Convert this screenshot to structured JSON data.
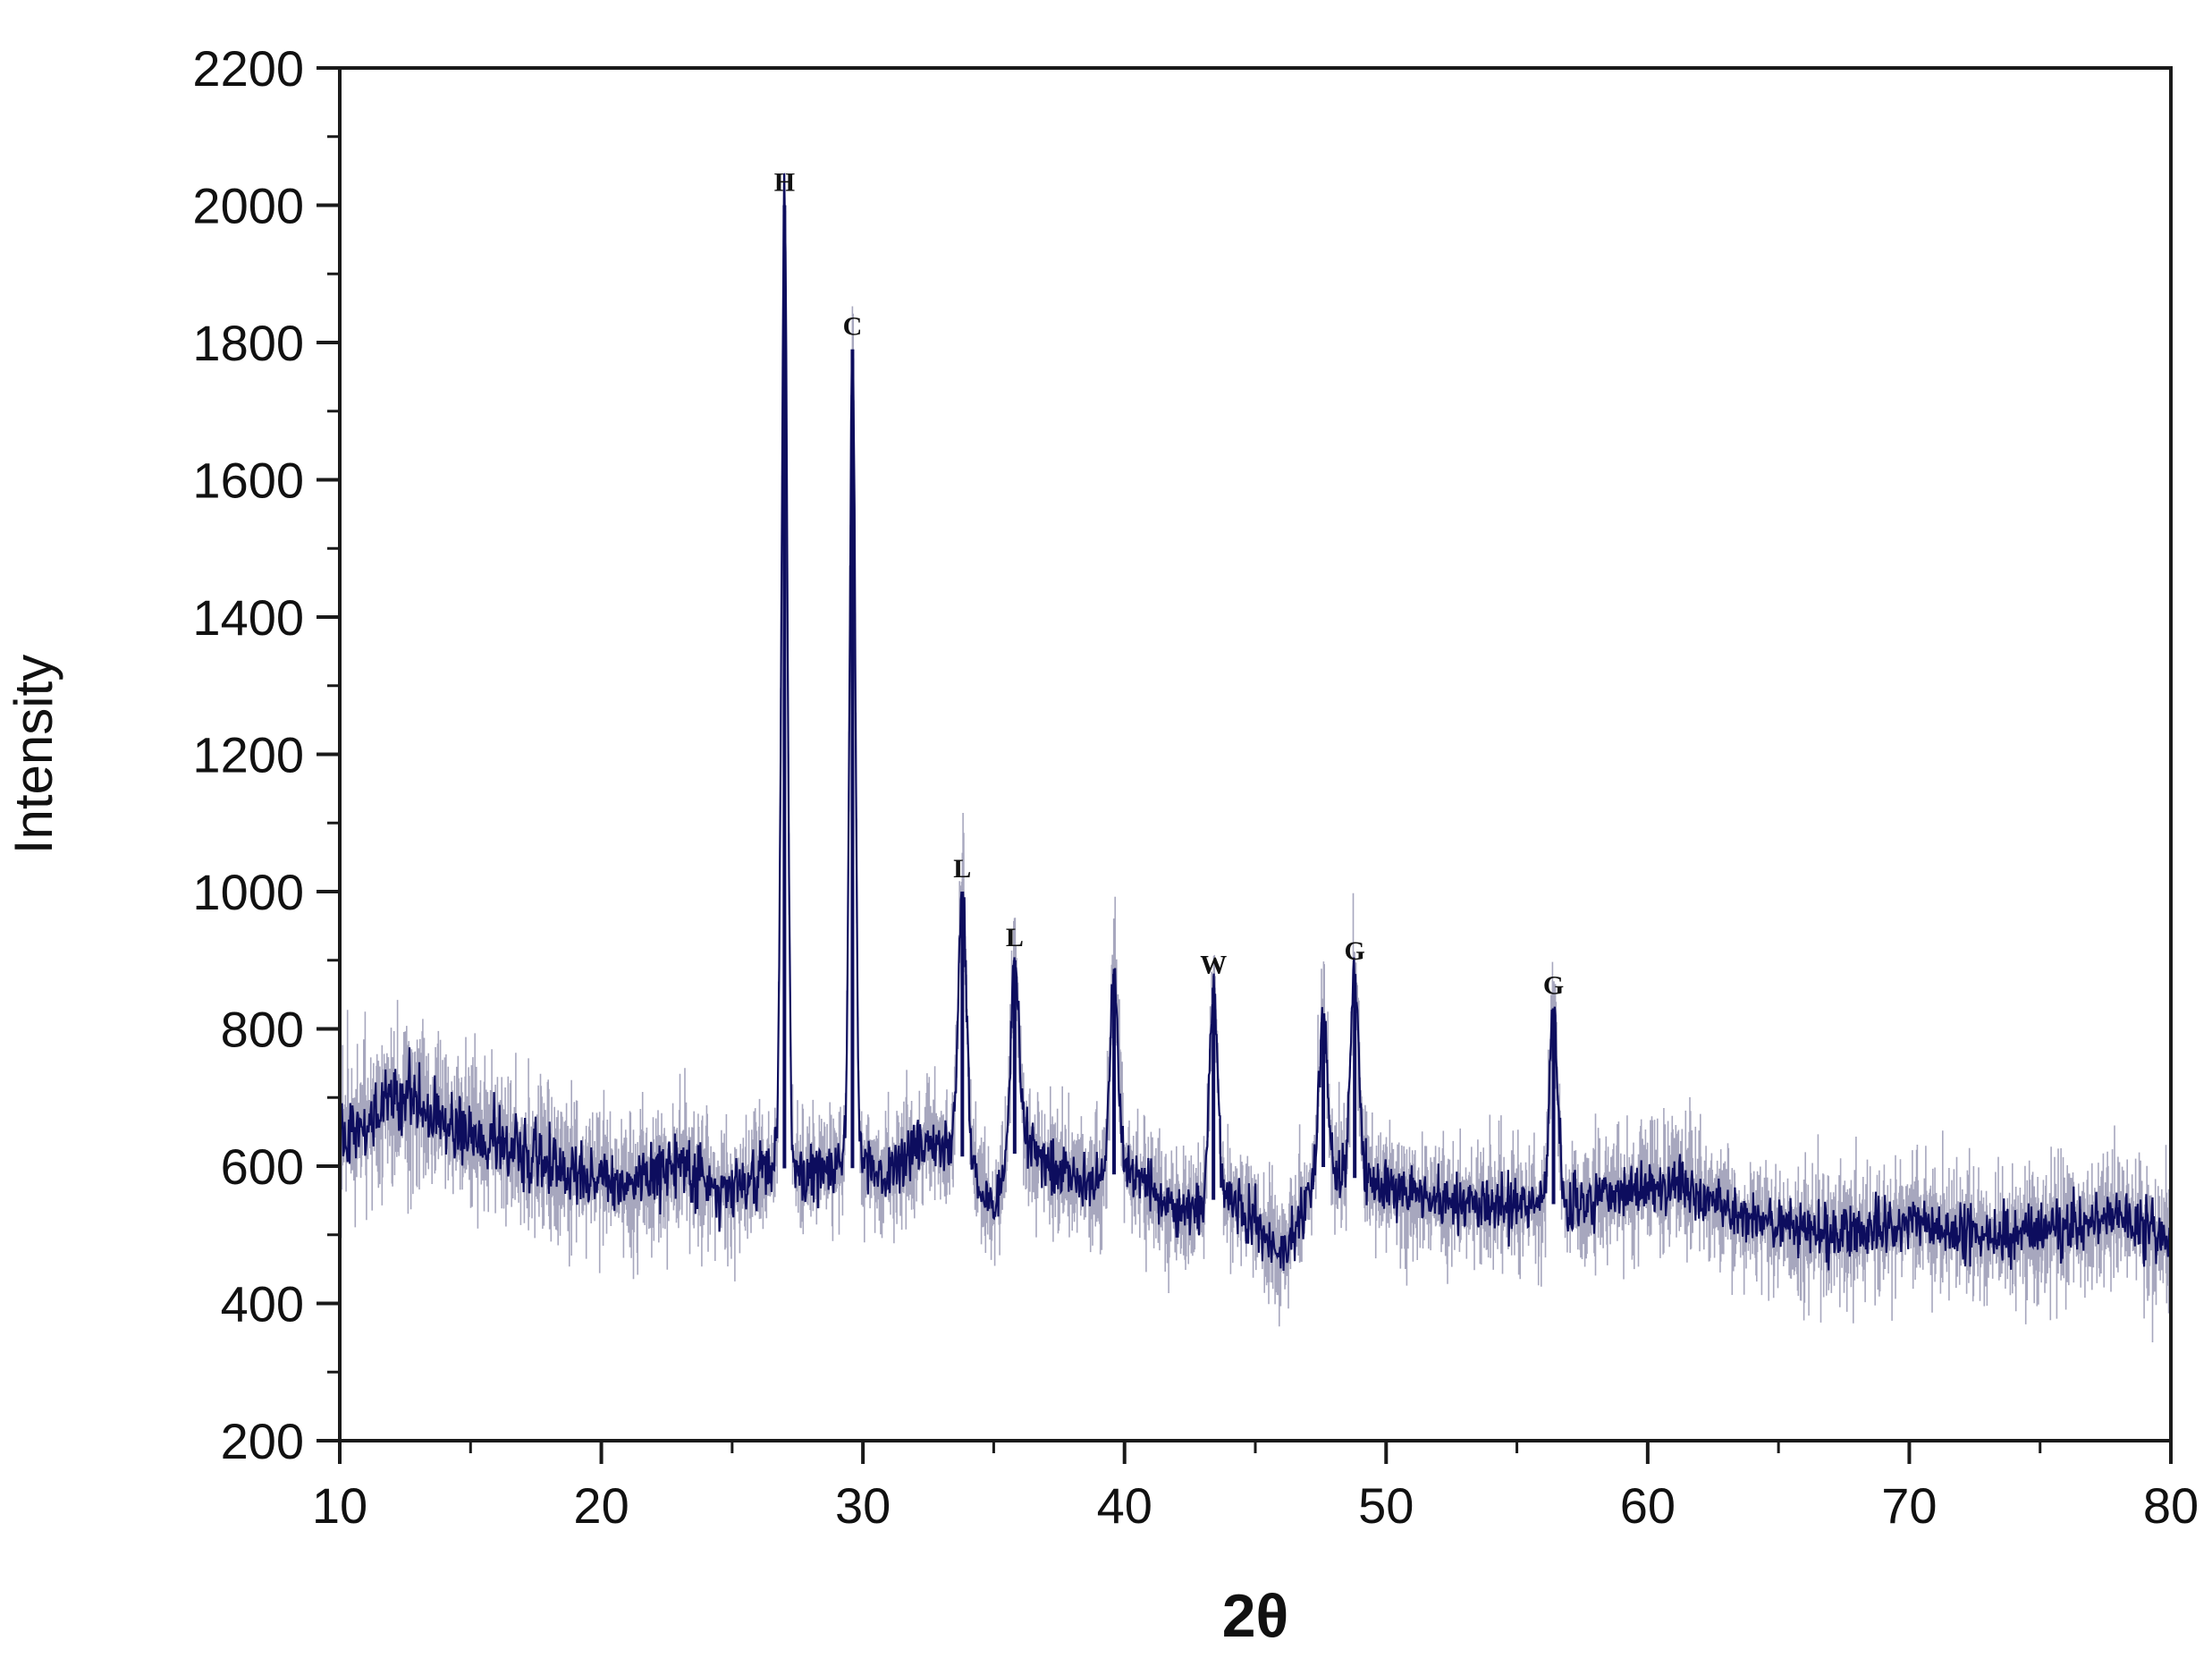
{
  "chart_data": {
    "type": "line",
    "title": "",
    "xlabel": "2θ",
    "ylabel": "Intensity",
    "xlim": [
      10,
      80
    ],
    "ylim": [
      200,
      2200
    ],
    "xticks": [
      10,
      20,
      30,
      40,
      50,
      60,
      70,
      80
    ],
    "yticks": [
      200,
      400,
      600,
      800,
      1000,
      1200,
      1400,
      1600,
      1800,
      2000,
      2200
    ],
    "grid": false,
    "legend": "none",
    "series_color": "#0d0d5e",
    "noise_color": "#8a8aa8",
    "baseline": {
      "x": [
        10,
        12.5,
        15,
        17,
        19,
        21,
        23,
        25,
        26.5,
        28,
        29,
        31,
        32.5,
        34,
        35,
        36,
        37.5,
        39,
        40,
        42,
        44,
        46,
        47.5,
        49,
        52,
        55,
        58,
        61,
        64,
        67,
        70,
        73,
        76,
        78,
        80
      ],
      "y": [
        640,
        700,
        650,
        620,
        590,
        570,
        600,
        560,
        600,
        590,
        600,
        590,
        640,
        610,
        530,
        640,
        590,
        570,
        600,
        530,
        560,
        470,
        600,
        580,
        550,
        540,
        550,
        580,
        520,
        500,
        520,
        500,
        510,
        530,
        480
      ]
    },
    "peaks": [
      {
        "x": 27.0,
        "y": 2000,
        "label": "H"
      },
      {
        "x": 29.6,
        "y": 1790,
        "label": "C"
      },
      {
        "x": 33.8,
        "y": 1000,
        "label": "L"
      },
      {
        "x": 35.8,
        "y": 900,
        "label": "L"
      },
      {
        "x": 39.6,
        "y": 880,
        "label": ""
      },
      {
        "x": 43.4,
        "y": 860,
        "label": "W"
      },
      {
        "x": 47.6,
        "y": 820,
        "label": ""
      },
      {
        "x": 48.8,
        "y": 880,
        "label": "G"
      },
      {
        "x": 56.4,
        "y": 830,
        "label": "G"
      }
    ]
  }
}
